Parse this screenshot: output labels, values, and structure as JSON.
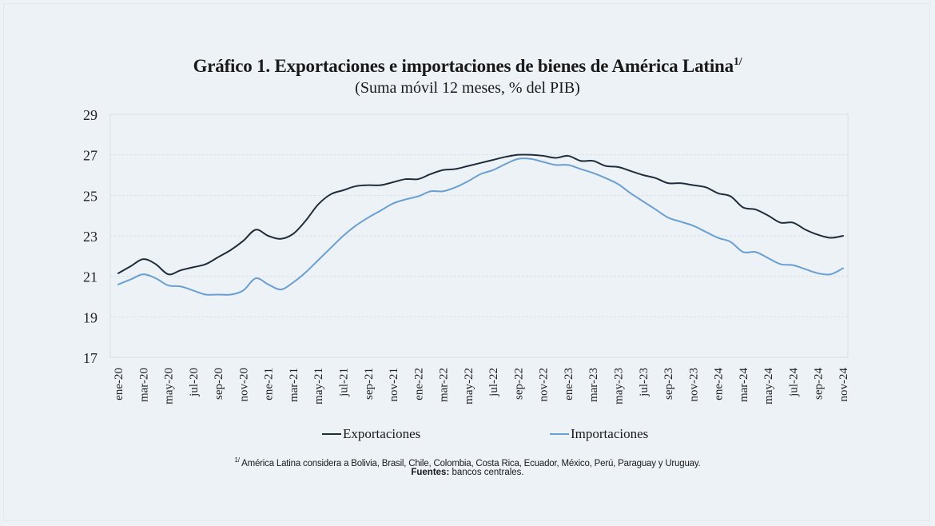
{
  "chart_data": {
    "type": "line",
    "title": "Gráfico 1. Exportaciones e importaciones de bienes de América Latina",
    "title_superscript": "1/",
    "subtitle": "(Suma móvil 12 meses, % del PIB)",
    "xlabel": "",
    "ylabel": "",
    "ylim": [
      17,
      29
    ],
    "yticks": [
      17,
      19,
      21,
      23,
      25,
      27,
      29
    ],
    "grid": true,
    "legend_position": "bottom",
    "x": [
      "ene-20",
      "feb-20",
      "mar-20",
      "abr-20",
      "may-20",
      "jun-20",
      "jul-20",
      "ago-20",
      "sep-20",
      "oct-20",
      "nov-20",
      "dic-20",
      "ene-21",
      "feb-21",
      "mar-21",
      "abr-21",
      "may-21",
      "jun-21",
      "jul-21",
      "ago-21",
      "sep-21",
      "oct-21",
      "nov-21",
      "dic-21",
      "ene-22",
      "feb-22",
      "mar-22",
      "abr-22",
      "may-22",
      "jun-22",
      "jul-22",
      "ago-22",
      "sep-22",
      "oct-22",
      "nov-22",
      "dic-22",
      "ene-23",
      "feb-23",
      "mar-23",
      "abr-23",
      "may-23",
      "jun-23",
      "jul-23",
      "ago-23",
      "sep-23",
      "oct-23",
      "nov-23",
      "dic-23",
      "ene-24",
      "feb-24",
      "mar-24",
      "abr-24",
      "may-24",
      "jun-24",
      "jul-24",
      "ago-24",
      "sep-24",
      "oct-24",
      "nov-24"
    ],
    "xtick_labels": [
      "ene-20",
      "mar-20",
      "may-20",
      "jul-20",
      "sep-20",
      "nov-20",
      "ene-21",
      "mar-21",
      "may-21",
      "jul-21",
      "sep-21",
      "nov-21",
      "ene-22",
      "mar-22",
      "may-22",
      "jul-22",
      "sep-22",
      "nov-22",
      "ene-23",
      "mar-23",
      "may-23",
      "jul-23",
      "sep-23",
      "nov-23",
      "ene-24",
      "mar-24",
      "may-24",
      "jul-24",
      "sep-24",
      "nov-24"
    ],
    "series": [
      {
        "name": "Exportaciones",
        "color": "#1f2d3a",
        "values": [
          21.15,
          21.5,
          21.85,
          21.6,
          21.1,
          21.3,
          21.45,
          21.6,
          21.95,
          22.3,
          22.75,
          23.3,
          23.0,
          22.85,
          23.1,
          23.75,
          24.55,
          25.05,
          25.25,
          25.45,
          25.5,
          25.5,
          25.65,
          25.8,
          25.8,
          26.05,
          26.25,
          26.3,
          26.45,
          26.6,
          26.75,
          26.9,
          27.0,
          27.0,
          26.95,
          26.85,
          26.95,
          26.7,
          26.7,
          26.45,
          26.4,
          26.2,
          26.0,
          25.85,
          25.6,
          25.6,
          25.5,
          25.4,
          25.1,
          24.95,
          24.4,
          24.3,
          24.0,
          23.65,
          23.65,
          23.3,
          23.05,
          22.9,
          23.0
        ]
      },
      {
        "name": "Importaciones",
        "color": "#6a9fd0",
        "values": [
          20.6,
          20.85,
          21.1,
          20.9,
          20.55,
          20.5,
          20.3,
          20.1,
          20.1,
          20.1,
          20.3,
          20.9,
          20.6,
          20.35,
          20.7,
          21.2,
          21.8,
          22.4,
          23.0,
          23.5,
          23.9,
          24.25,
          24.6,
          24.8,
          24.95,
          25.2,
          25.2,
          25.4,
          25.7,
          26.05,
          26.25,
          26.55,
          26.8,
          26.8,
          26.65,
          26.5,
          26.5,
          26.3,
          26.1,
          25.85,
          25.55,
          25.1,
          24.7,
          24.3,
          23.9,
          23.7,
          23.5,
          23.2,
          22.9,
          22.7,
          22.2,
          22.2,
          21.9,
          21.6,
          21.55,
          21.35,
          21.15,
          21.1,
          21.4
        ]
      }
    ]
  },
  "footnote": {
    "marker": "1/",
    "text": "América Latina considera a Bolivia, Brasil, Chile, Colombia, Costa Rica, Ecuador, México, Perú, Paraguay y Uruguay.",
    "sources_label": "Fuentes:",
    "sources_text": "bancos centrales."
  },
  "colors": {
    "background": "#edf2f6",
    "grid": "#d9dfe4"
  }
}
